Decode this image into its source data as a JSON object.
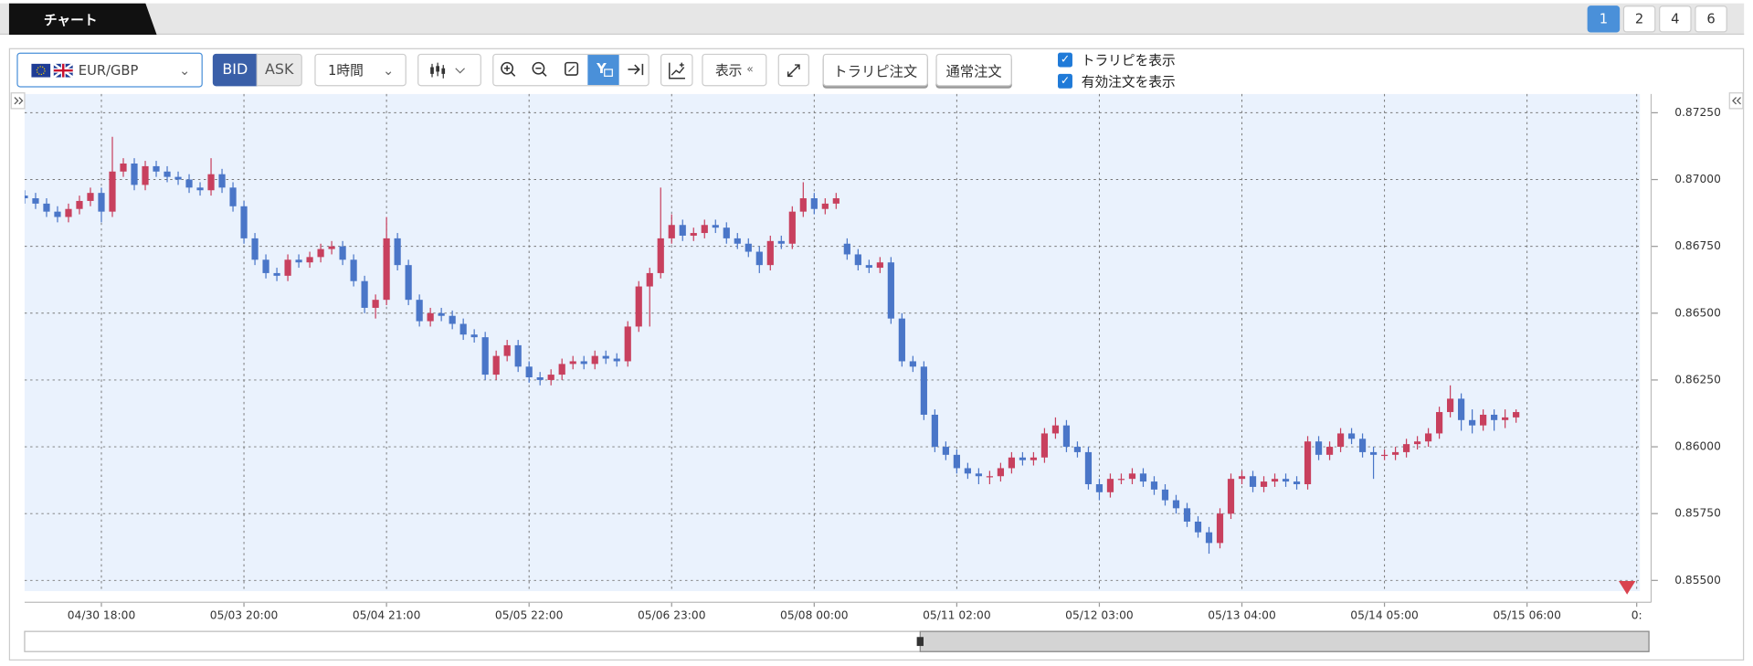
{
  "ui": {
    "tab": "チャート",
    "pages": [
      "1",
      "2",
      "4",
      "6"
    ],
    "pair": "EUR/GBP",
    "bid": "BID",
    "ask": "ASK",
    "interval": "1時間",
    "display": "表示",
    "trarip_order": "トラリピ注文",
    "normal_order": "通常注文",
    "show_trarip": "トラリピを表示",
    "show_orders": "有効注文を表示"
  },
  "chart_data": {
    "type": "candlestick",
    "up_color": "#c8405e",
    "down_color": "#4a76c8",
    "background": "#eaf2fd",
    "grid": true,
    "xlim": [
      0,
      147.5
    ],
    "ylim": [
      0.8546,
      0.8732
    ],
    "xticks": [
      {
        "value": 7,
        "label": "04/30 18:00"
      },
      {
        "value": 20,
        "label": "05/03 20:00"
      },
      {
        "value": 33,
        "label": "05/04 21:00"
      },
      {
        "value": 46,
        "label": "05/05 22:00"
      },
      {
        "value": 59,
        "label": "05/06 23:00"
      },
      {
        "value": 72,
        "label": "05/08 00:00"
      },
      {
        "value": 85,
        "label": "05/11 02:00"
      },
      {
        "value": 98,
        "label": "05/12 03:00"
      },
      {
        "value": 111,
        "label": "05/13 04:00"
      },
      {
        "value": 124,
        "label": "05/14 05:00"
      },
      {
        "value": 137,
        "label": "05/15 06:00"
      },
      {
        "value": 147,
        "label": "0:"
      }
    ],
    "yticks": [
      {
        "value": 0.855,
        "label": "0.85500"
      },
      {
        "value": 0.8575,
        "label": "0.85750"
      },
      {
        "value": 0.86,
        "label": "0.86000"
      },
      {
        "value": 0.8625,
        "label": "0.86250"
      },
      {
        "value": 0.865,
        "label": "0.86500"
      },
      {
        "value": 0.8675,
        "label": "0.86750"
      },
      {
        "value": 0.87,
        "label": "0.87000"
      },
      {
        "value": 0.8725,
        "label": "0.87250"
      }
    ],
    "open": [
      0.8694,
      0.8693,
      0.8691,
      0.8688,
      0.8686,
      0.8689,
      0.8692,
      0.8695,
      0.8688,
      0.8703,
      0.8706,
      0.8698,
      0.8705,
      0.8703,
      0.8701,
      0.87,
      0.8697,
      0.8696,
      0.8702,
      0.8697,
      0.869,
      0.8678,
      0.867,
      0.8665,
      0.8664,
      0.867,
      0.8669,
      0.8671,
      0.8674,
      0.8675,
      0.867,
      0.8662,
      0.8652,
      0.8655,
      0.8678,
      0.8668,
      0.8655,
      0.8647,
      0.865,
      0.8649,
      0.8646,
      0.8642,
      0.8641,
      0.8627,
      0.8634,
      0.8638,
      0.863,
      0.8626,
      0.8625,
      0.8627,
      0.8631,
      0.8632,
      0.8631,
      0.8634,
      0.8633,
      0.8632,
      0.8645,
      0.866,
      0.8665,
      0.8678,
      0.8683,
      0.8679,
      0.868,
      0.8683,
      0.8682,
      0.8678,
      0.8676,
      0.8673,
      0.8668,
      0.8677,
      0.8676,
      0.8688,
      0.8693,
      0.8689,
      0.8691,
      0.8676,
      0.8672,
      0.8668,
      0.8667,
      0.8669,
      0.8648,
      0.8632,
      0.863,
      0.8612,
      0.86,
      0.8597,
      0.8592,
      0.859,
      0.8589,
      0.8589,
      0.8592,
      0.8596,
      0.8595,
      0.8596,
      0.8605,
      0.8608,
      0.86,
      0.8598,
      0.8586,
      0.8583,
      0.8588,
      0.8588,
      0.859,
      0.8587,
      0.8584,
      0.858,
      0.8577,
      0.8572,
      0.8568,
      0.8564,
      0.8575,
      0.8588,
      0.8589,
      0.8585,
      0.8587,
      0.8588,
      0.8587,
      0.8586,
      0.8602,
      0.8597,
      0.86,
      0.8605,
      0.8603,
      0.8598,
      0.8597,
      0.8597,
      0.8598,
      0.8601,
      0.8602,
      0.8605,
      0.8613,
      0.8618,
      0.861,
      0.8608,
      0.8612,
      0.861,
      0.8611
    ],
    "high": [
      0.8696,
      0.8695,
      0.8693,
      0.869,
      0.8691,
      0.8694,
      0.8697,
      0.8697,
      0.8716,
      0.8708,
      0.8708,
      0.8707,
      0.8707,
      0.8705,
      0.8703,
      0.8702,
      0.8699,
      0.8708,
      0.8704,
      0.8699,
      0.8692,
      0.868,
      0.8672,
      0.8667,
      0.8672,
      0.8672,
      0.8673,
      0.8676,
      0.8677,
      0.8677,
      0.8672,
      0.8664,
      0.8657,
      0.8686,
      0.868,
      0.867,
      0.8657,
      0.8652,
      0.8652,
      0.8651,
      0.8648,
      0.8644,
      0.8643,
      0.8636,
      0.864,
      0.864,
      0.8632,
      0.8628,
      0.8629,
      0.8633,
      0.8634,
      0.8634,
      0.8636,
      0.8636,
      0.8635,
      0.8647,
      0.8662,
      0.8667,
      0.8697,
      0.8687,
      0.8685,
      0.8682,
      0.8685,
      0.8685,
      0.8684,
      0.868,
      0.8678,
      0.8675,
      0.8679,
      0.8679,
      0.869,
      0.8699,
      0.8695,
      0.8693,
      0.8695,
      0.8678,
      0.8674,
      0.867,
      0.8671,
      0.8671,
      0.865,
      0.8634,
      0.8632,
      0.8614,
      0.8602,
      0.8599,
      0.8594,
      0.8592,
      0.8591,
      0.8594,
      0.8598,
      0.8598,
      0.8598,
      0.8607,
      0.8611,
      0.861,
      0.8602,
      0.86,
      0.8588,
      0.859,
      0.859,
      0.8592,
      0.8592,
      0.8589,
      0.8586,
      0.8582,
      0.8579,
      0.8574,
      0.857,
      0.8577,
      0.859,
      0.8591,
      0.8591,
      0.8589,
      0.859,
      0.859,
      0.8589,
      0.8604,
      0.8604,
      0.8602,
      0.8607,
      0.8607,
      0.8605,
      0.86,
      0.8599,
      0.86,
      0.8603,
      0.8604,
      0.8607,
      0.8615,
      0.8623,
      0.862,
      0.8614,
      0.8614,
      0.8614,
      0.8614,
      0.8614
    ],
    "low": [
      0.8691,
      0.8689,
      0.8686,
      0.8684,
      0.8684,
      0.8687,
      0.869,
      0.8684,
      0.8686,
      0.8701,
      0.8696,
      0.8696,
      0.8701,
      0.8699,
      0.8698,
      0.8695,
      0.8694,
      0.8694,
      0.8695,
      0.8688,
      0.8676,
      0.8668,
      0.8663,
      0.8662,
      0.8662,
      0.8667,
      0.8667,
      0.8669,
      0.8672,
      0.8668,
      0.866,
      0.865,
      0.8648,
      0.8653,
      0.8666,
      0.8653,
      0.8645,
      0.8645,
      0.8647,
      0.8644,
      0.864,
      0.8639,
      0.8625,
      0.8625,
      0.8632,
      0.8628,
      0.8624,
      0.8623,
      0.8623,
      0.8625,
      0.8629,
      0.8629,
      0.8629,
      0.8631,
      0.863,
      0.863,
      0.8643,
      0.8645,
      0.8663,
      0.8676,
      0.8677,
      0.8677,
      0.8678,
      0.868,
      0.8676,
      0.8674,
      0.8671,
      0.8665,
      0.8666,
      0.8674,
      0.8674,
      0.8686,
      0.8687,
      0.8687,
      0.8689,
      0.867,
      0.8666,
      0.8665,
      0.8665,
      0.8646,
      0.863,
      0.8628,
      0.861,
      0.8598,
      0.8595,
      0.859,
      0.8588,
      0.8586,
      0.8586,
      0.8587,
      0.859,
      0.8593,
      0.8593,
      0.8594,
      0.8603,
      0.8598,
      0.8596,
      0.8584,
      0.858,
      0.8581,
      0.8586,
      0.8586,
      0.8585,
      0.8582,
      0.8578,
      0.8575,
      0.857,
      0.8566,
      0.856,
      0.8562,
      0.8573,
      0.8586,
      0.8583,
      0.8583,
      0.8585,
      0.8585,
      0.8584,
      0.8584,
      0.8595,
      0.8595,
      0.8598,
      0.8601,
      0.8596,
      0.8588,
      0.8595,
      0.8595,
      0.8596,
      0.8599,
      0.86,
      0.8603,
      0.8611,
      0.8606,
      0.8605,
      0.8606,
      0.8606,
      0.8607,
      0.8609
    ],
    "close": [
      0.8693,
      0.8691,
      0.8688,
      0.8686,
      0.8689,
      0.8692,
      0.8695,
      0.8688,
      0.8703,
      0.8706,
      0.8698,
      0.8705,
      0.8703,
      0.8701,
      0.87,
      0.8697,
      0.8696,
      0.8702,
      0.8697,
      0.869,
      0.8678,
      0.867,
      0.8665,
      0.8664,
      0.867,
      0.8669,
      0.8671,
      0.8674,
      0.8675,
      0.867,
      0.8662,
      0.8652,
      0.8655,
      0.8678,
      0.8668,
      0.8655,
      0.8647,
      0.865,
      0.8649,
      0.8646,
      0.8642,
      0.8641,
      0.8627,
      0.8634,
      0.8638,
      0.863,
      0.8626,
      0.8625,
      0.8627,
      0.8631,
      0.8632,
      0.8631,
      0.8634,
      0.8633,
      0.8632,
      0.8645,
      0.866,
      0.8665,
      0.8678,
      0.8683,
      0.8679,
      0.868,
      0.8683,
      0.8682,
      0.8678,
      0.8676,
      0.8673,
      0.8668,
      0.8677,
      0.8676,
      0.8688,
      0.8693,
      0.8689,
      0.8691,
      0.8693,
      0.8672,
      0.8668,
      0.8667,
      0.8669,
      0.8648,
      0.8632,
      0.863,
      0.8612,
      0.86,
      0.8597,
      0.8592,
      0.859,
      0.8589,
      0.8589,
      0.8592,
      0.8596,
      0.8595,
      0.8596,
      0.8605,
      0.8608,
      0.86,
      0.8598,
      0.8586,
      0.8583,
      0.8588,
      0.8588,
      0.859,
      0.8587,
      0.8584,
      0.858,
      0.8577,
      0.8572,
      0.8568,
      0.8564,
      0.8575,
      0.8588,
      0.8589,
      0.8585,
      0.8587,
      0.8588,
      0.8587,
      0.8586,
      0.8602,
      0.8597,
      0.86,
      0.8605,
      0.8603,
      0.8598,
      0.8597,
      0.8597,
      0.8598,
      0.8601,
      0.8602,
      0.8605,
      0.8613,
      0.8618,
      0.861,
      0.8608,
      0.8612,
      0.861,
      0.8611,
      0.8613
    ]
  }
}
